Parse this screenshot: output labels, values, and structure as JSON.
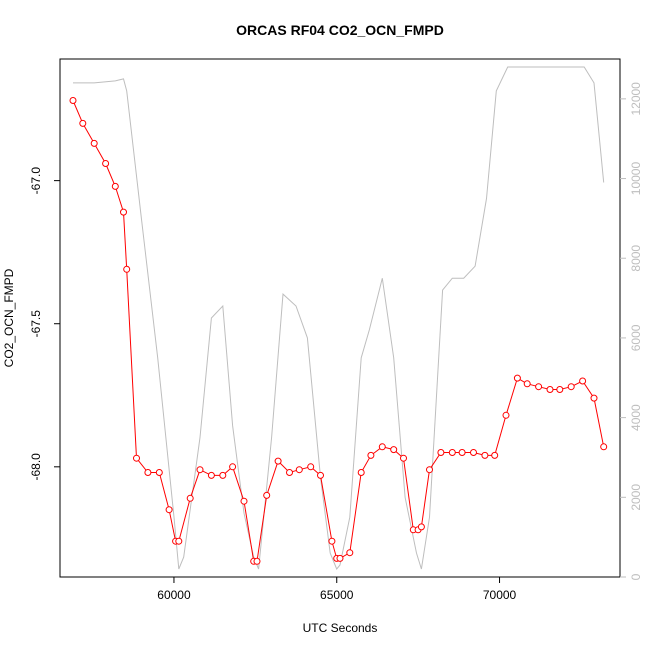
{
  "chart_data": {
    "type": "line",
    "title": "ORCAS RF04 CO2_OCN_FMPD",
    "xlabel": "UTC Seconds",
    "ylabel": "CO2_OCN_FMPD",
    "xlim": [
      56500,
      73700
    ],
    "ylim": [
      -68.385,
      -66.575
    ],
    "y2lim": [
      0,
      13000
    ],
    "x_ticks": [
      60000,
      65000,
      70000
    ],
    "x_tick_labels": [
      "60000",
      "65000",
      "70000"
    ],
    "y_ticks": [
      -67.0,
      -67.5,
      -68.0
    ],
    "y_tick_labels": [
      "-67.0",
      "-67.5",
      "-68.0"
    ],
    "y2_ticks": [
      0,
      2000,
      4000,
      6000,
      8000,
      10000,
      12000
    ],
    "y2_tick_labels": [
      "0",
      "2000",
      "4000",
      "6000",
      "8000",
      "10000",
      "12000"
    ],
    "colors": {
      "primary": "#ff0000",
      "secondary": "#bebebe",
      "axis": "#000000"
    },
    "series": [
      {
        "axis": "left",
        "style": "line+points",
        "x": [
          56900,
          57200,
          57550,
          57900,
          58200,
          58450,
          58550,
          58850,
          59200,
          59550,
          59850,
          60050,
          60150,
          60500,
          60800,
          61150,
          61500,
          61800,
          62150,
          62450,
          62550,
          62850,
          63200,
          63550,
          63850,
          64200,
          64500,
          64850,
          65000,
          65100,
          65400,
          65750,
          66050,
          66400,
          66750,
          67050,
          67350,
          67500,
          67600,
          67850,
          68200,
          68550,
          68850,
          69200,
          69550,
          69850,
          70200,
          70550,
          70850,
          71200,
          71550,
          71850,
          72200,
          72550,
          72900,
          73200
        ],
        "y": [
          -66.72,
          -66.8,
          -66.87,
          -66.94,
          -67.02,
          -67.11,
          -67.31,
          -67.97,
          -68.02,
          -68.02,
          -68.15,
          -68.26,
          -68.26,
          -68.11,
          -68.01,
          -68.03,
          -68.03,
          -68.0,
          -68.12,
          -68.33,
          -68.33,
          -68.1,
          -67.98,
          -68.02,
          -68.01,
          -68.0,
          -68.03,
          -68.26,
          -68.32,
          -68.32,
          -68.3,
          -68.02,
          -67.96,
          -67.93,
          -67.94,
          -67.97,
          -68.22,
          -68.22,
          -68.21,
          -68.01,
          -67.95,
          -67.95,
          -67.95,
          -67.95,
          -67.96,
          -67.96,
          -67.82,
          -67.69,
          -67.71,
          -67.72,
          -67.73,
          -67.73,
          -67.72,
          -67.7,
          -67.76,
          -67.93
        ]
      },
      {
        "axis": "right",
        "style": "line",
        "x": [
          56900,
          57550,
          58200,
          58450,
          58550,
          59000,
          59500,
          60000,
          60150,
          60300,
          60800,
          61150,
          61500,
          61800,
          62150,
          62450,
          62600,
          63000,
          63350,
          63750,
          64100,
          64500,
          64800,
          65000,
          65100,
          65400,
          65750,
          66000,
          66400,
          66750,
          67100,
          67450,
          67600,
          67850,
          68250,
          68550,
          68900,
          69250,
          69600,
          69900,
          70250,
          70550,
          71000,
          71600,
          72000,
          72600,
          72900,
          73200
        ],
        "y": [
          12400,
          12400,
          12450,
          12500,
          12200,
          9000,
          5500,
          1500,
          200,
          500,
          3500,
          6500,
          6800,
          3800,
          1600,
          500,
          200,
          3500,
          7100,
          6800,
          6000,
          2500,
          600,
          200,
          300,
          1500,
          5500,
          6200,
          7500,
          5500,
          2000,
          600,
          200,
          1500,
          7200,
          7500,
          7500,
          7800,
          9500,
          12200,
          12800,
          12800,
          12800,
          12800,
          12800,
          12800,
          12400,
          9900
        ]
      }
    ]
  }
}
